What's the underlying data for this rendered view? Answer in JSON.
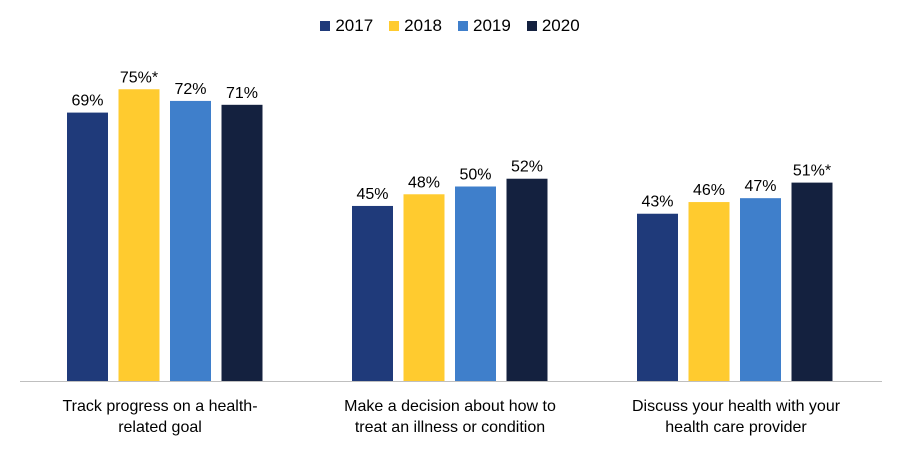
{
  "chart_data": {
    "type": "bar",
    "categories": [
      {
        "line1": "Track progress on a health-",
        "line2": "related goal"
      },
      {
        "line1": "Make a decision about how to",
        "line2": "treat an illness or condition"
      },
      {
        "line1": "Discuss your health with your",
        "line2": "health care provider"
      }
    ],
    "series": [
      {
        "name": "2017",
        "color": "#1F3A7A",
        "values": [
          69,
          45,
          43
        ],
        "labels": [
          "69%",
          "45%",
          "43%"
        ]
      },
      {
        "name": "2018",
        "color": "#FFCB2F",
        "values": [
          75,
          48,
          46
        ],
        "labels": [
          "75%*",
          "48%",
          "46%"
        ]
      },
      {
        "name": "2019",
        "color": "#3F7FCB",
        "values": [
          72,
          50,
          47
        ],
        "labels": [
          "72%",
          "50%",
          "47%"
        ]
      },
      {
        "name": "2020",
        "color": "#14213F",
        "values": [
          71,
          52,
          51
        ],
        "labels": [
          "71%",
          "52%",
          "51%*"
        ]
      }
    ],
    "ylim": [
      0,
      100
    ],
    "title": "",
    "xlabel": "",
    "ylabel": "",
    "legend_position": "top-center"
  }
}
